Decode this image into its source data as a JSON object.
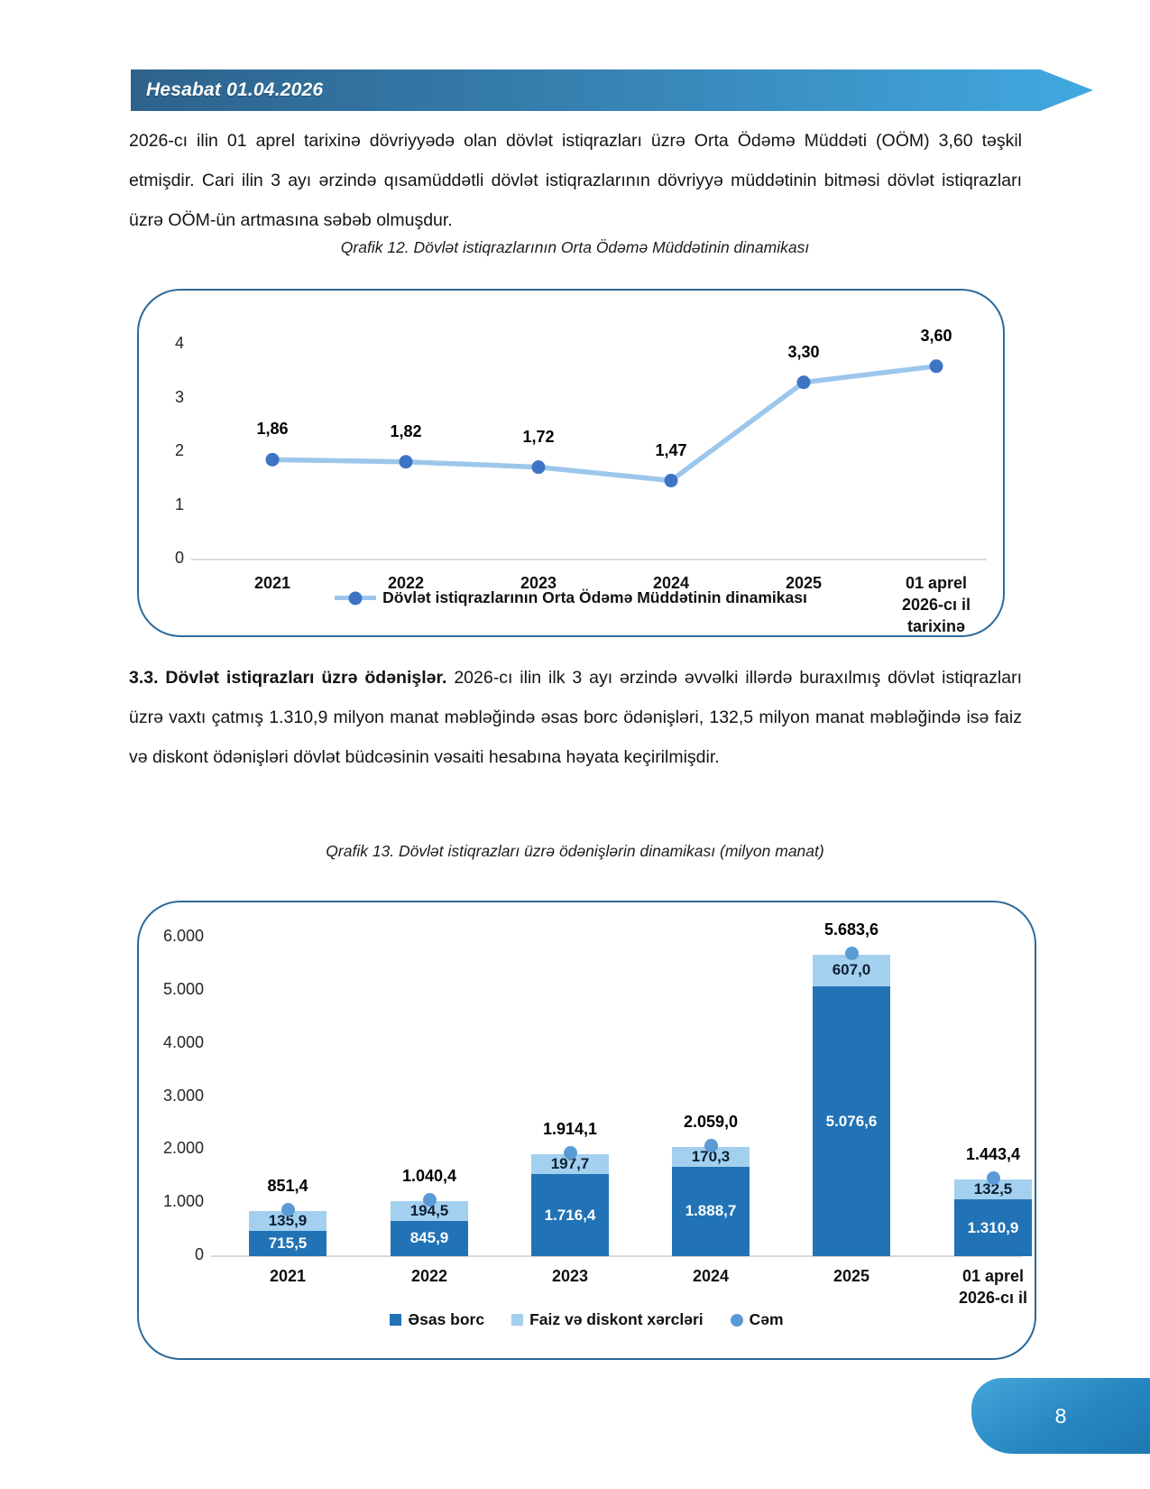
{
  "header": {
    "title": "Hesabat 01.04.2026"
  },
  "paragraph1": "2026-cı ilin 01 aprel tarixinə dövriyyədə olan dövlət istiqrazları üzrə Orta Ödəmə Müddəti (OÖM) 3,60 təşkil etmişdir. Cari ilin 3 ayı ərzində qısamüddətli dövlət istiqrazlarının dövriyyə müddətinin bitməsi dövlət istiqrazları üzrə OÖM-ün artmasına səbəb olmuşdur.",
  "caption1": "Qrafik 12. Dövlət istiqrazlarının Orta Ödəmə Müddətinin dinamikası",
  "section": {
    "lead": "3.3. Dövlət istiqrazları üzrə ödənişlər.",
    "body": " 2026-cı ilin ilk 3 ayı ərzində əvvəlki illərdə buraxılmış dövlət istiqrazları üzrə vaxtı çatmış 1.310,9 milyon  manat  məbləğində əsas borc ödənişləri, 132,5 milyon  manat  məbləğində isə faiz  və diskont  ödənişləri dövlət  büdcəsinin vəsaiti hesabına həyata keçirilmişdir."
  },
  "caption2": "Qrafik 13. Dövlət istiqrazları üzrə ödənişlərin dinamikası (milyon manat)",
  "footer": {
    "page_number": "8"
  },
  "chart_data": [
    {
      "type": "line",
      "title": "Qrafik 12. Dövlət istiqrazlarının Orta Ödəmə Müddətinin dinamikası",
      "categories": [
        "2021",
        "2022",
        "2023",
        "2024",
        "2025",
        "01 aprel\n2026-cı il\ntarixinə"
      ],
      "values": [
        1.86,
        1.82,
        1.72,
        1.47,
        3.3,
        3.6
      ],
      "labels": [
        "1,86",
        "1,82",
        "1,72",
        "1,47",
        "3,30",
        "3,60"
      ],
      "y_ticks": [
        0,
        1,
        2,
        3,
        4
      ],
      "ylim": [
        0,
        4
      ],
      "grid": false,
      "legend_position": "bottom",
      "legend": [
        "Dövlət istiqrazlarının Orta Ödəmə Müddətinin dinamikası"
      ],
      "line_color": "#9cc7ec",
      "marker_color": "#3e74c4"
    },
    {
      "type": "bar",
      "stacked": true,
      "title": "Qrafik 13. Dövlət istiqrazları üzrə ödənişlərin dinamikası (milyon manat)",
      "categories": [
        "2021",
        "2022",
        "2023",
        "2024",
        "2025",
        "01 aprel\n2026-cı il"
      ],
      "series": [
        {
          "name": "Əsas borc",
          "values": [
            715.5,
            845.9,
            1716.4,
            1888.7,
            5076.6,
            1310.9
          ],
          "labels": [
            "715,5",
            "845,9",
            "1.716,4",
            "1.888,7",
            "5.076,6",
            "1.310,9"
          ],
          "color": "#2173b6",
          "label_color": "#ffffff"
        },
        {
          "name": "Faiz və diskont xərcləri",
          "values": [
            135.9,
            194.5,
            197.7,
            170.3,
            607.0,
            132.5
          ],
          "labels": [
            "135,9",
            "194,5",
            "197,7",
            "170,3",
            "607,0",
            "132,5"
          ],
          "color": "#a3d0ef",
          "label_color": "#0d1f33"
        }
      ],
      "totals": {
        "name": "Cəm",
        "values": [
          851.4,
          1040.4,
          1914.1,
          2059.0,
          5683.6,
          1443.4
        ],
        "labels": [
          "851,4",
          "1.040,4",
          "1.914,1",
          "2.059,0",
          "5.683,6",
          "1.443,4"
        ],
        "marker_color": "#5b9bd5"
      },
      "y_ticks": [
        "0",
        "1.000",
        "2.000",
        "3.000",
        "4.000",
        "5.000",
        "6.000"
      ],
      "ylim": [
        0,
        6000
      ],
      "grid": false,
      "legend_position": "bottom"
    }
  ]
}
